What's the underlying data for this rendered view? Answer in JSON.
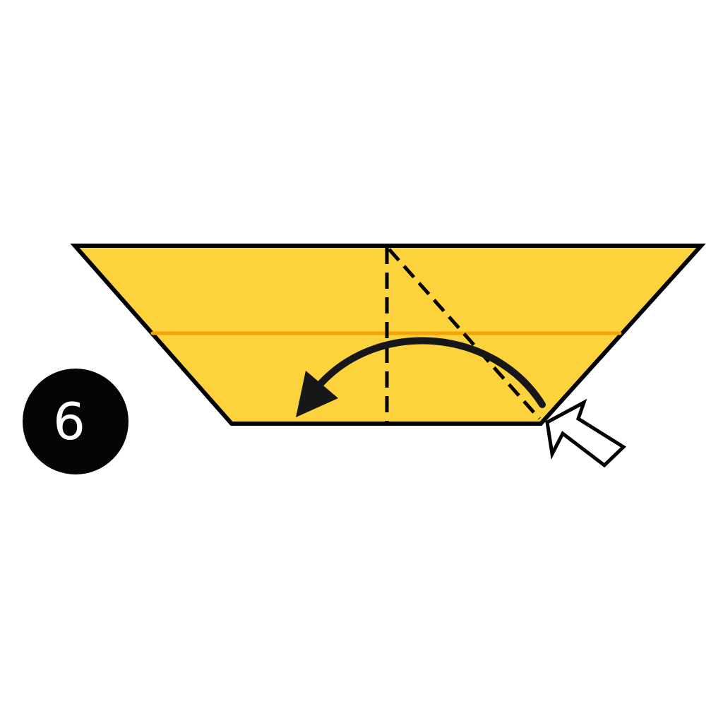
{
  "step": {
    "number": "6"
  },
  "colors": {
    "paper_fill": "#fcd23d",
    "inner_crease": "#f6a20b",
    "outline": "#000000",
    "badge_fill": "#050505",
    "badge_text": "#ffffff",
    "pointer_fill": "#ffffff"
  },
  "icons": {
    "step_badge": "step-number-badge",
    "fold_direction": "curved-arrow-icon",
    "push_indicator": "hollow-pointer-arrow-icon"
  }
}
